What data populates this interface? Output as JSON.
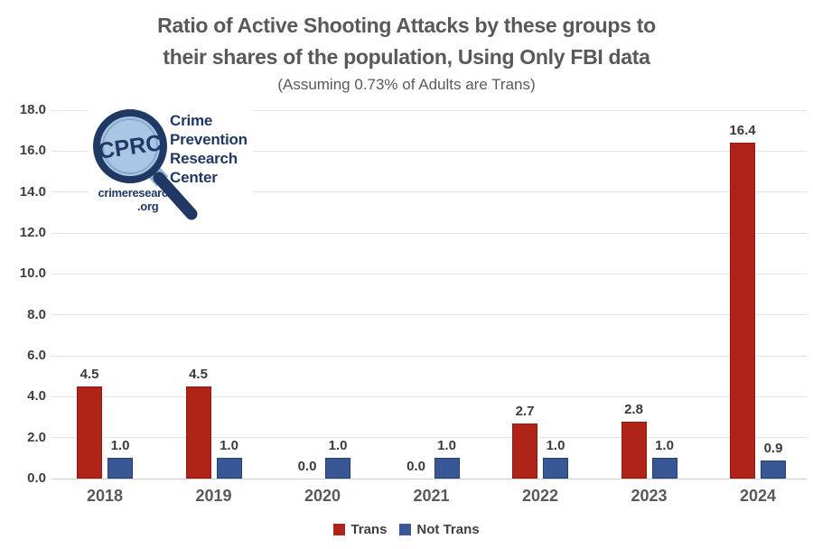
{
  "chart_data": {
    "type": "bar",
    "title": "Ratio of Active Shooting Attacks by these groups to their shares of the population, Using Only FBI data",
    "title_lines": [
      "Ratio of Active Shooting Attacks by these groups to",
      "their shares of the population, Using Only FBI data"
    ],
    "subtitle": "(Assuming 0.73% of Adults are Trans)",
    "categories": [
      "2018",
      "2019",
      "2020",
      "2021",
      "2022",
      "2023",
      "2024"
    ],
    "series": [
      {
        "name": "Trans",
        "color": "#B02318",
        "border": "#8E1C12",
        "values": [
          4.5,
          4.5,
          0.0,
          0.0,
          2.7,
          2.8,
          16.4
        ]
      },
      {
        "name": "Not Trans",
        "color": "#3A5795",
        "border": "#24406E",
        "values": [
          1.0,
          1.0,
          1.0,
          1.0,
          1.0,
          1.0,
          0.9
        ]
      }
    ],
    "ylim": [
      0,
      18
    ],
    "ytick_step": 2,
    "ytick_labels": [
      "0.0",
      "2.0",
      "4.0",
      "6.0",
      "8.0",
      "10.0",
      "12.0",
      "14.0",
      "16.0",
      "18.0"
    ],
    "grid": true,
    "legend_position": "bottom",
    "value_labels": true
  },
  "logo": {
    "acronym": "CPRC",
    "org_name_lines": [
      "Crime",
      "Prevention",
      "Research",
      "Center"
    ],
    "website_line1": "crimeresearch",
    "website_line2": ".org",
    "navy": "#1F3864",
    "lens_fill": "#A9C6E4"
  }
}
